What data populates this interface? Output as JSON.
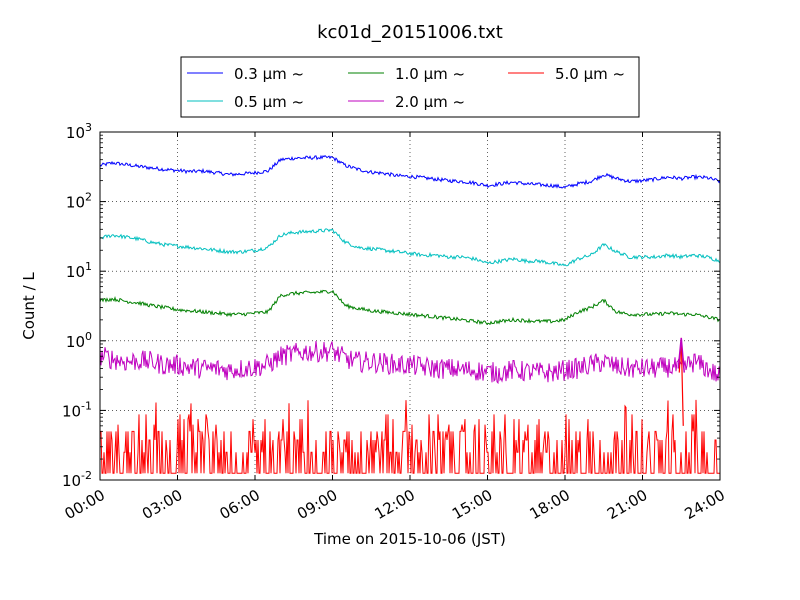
{
  "chart_data": {
    "type": "line",
    "title": "kc01d_20151006.txt",
    "xlabel": "Time on 2015-10-06 (JST)",
    "ylabel": "Count / L",
    "yscale": "log",
    "xlim": [
      0,
      24
    ],
    "ylim": [
      0.01,
      1000
    ],
    "grid": true,
    "legend_position": "top-center, above plot",
    "x_ticks": [
      "00:00",
      "03:00",
      "06:00",
      "09:00",
      "12:00",
      "15:00",
      "18:00",
      "21:00",
      "24:00"
    ],
    "y_ticks": [
      {
        "base": "10",
        "exp": "-2",
        "value": 0.01
      },
      {
        "base": "10",
        "exp": "-1",
        "value": 0.1
      },
      {
        "base": "10",
        "exp": "0",
        "value": 1
      },
      {
        "base": "10",
        "exp": "1",
        "value": 10
      },
      {
        "base": "10",
        "exp": "2",
        "value": 100
      },
      {
        "base": "10",
        "exp": "3",
        "value": 1000
      }
    ],
    "x_hours": [
      0,
      0.5,
      1,
      1.5,
      2,
      2.5,
      3,
      3.5,
      4,
      4.5,
      5,
      5.5,
      6,
      6.5,
      7,
      7.5,
      8,
      8.5,
      9,
      9.5,
      10,
      10.5,
      11,
      11.5,
      12,
      12.5,
      13,
      13.5,
      14,
      14.5,
      15,
      15.5,
      16,
      16.5,
      17,
      17.5,
      18,
      18.5,
      19,
      19.5,
      20,
      20.5,
      21,
      21.5,
      22,
      22.5,
      23,
      23.5,
      24
    ],
    "series": [
      {
        "name": "0.3 μm ~",
        "color": "#0000ff",
        "values": [
          330,
          360,
          340,
          320,
          305,
          290,
          280,
          270,
          275,
          260,
          245,
          250,
          260,
          275,
          400,
          420,
          425,
          430,
          430,
          330,
          290,
          265,
          255,
          235,
          230,
          220,
          210,
          200,
          195,
          185,
          170,
          180,
          190,
          180,
          175,
          170,
          160,
          180,
          195,
          245,
          215,
          195,
          200,
          210,
          225,
          215,
          225,
          220,
          195
        ]
      },
      {
        "name": "0.5 μm ~",
        "color": "#00bfbf",
        "values": [
          30,
          33,
          31,
          29,
          26,
          24,
          23,
          22,
          21,
          20,
          19,
          19,
          20,
          22,
          33,
          36,
          37,
          38,
          39,
          26,
          22,
          21,
          20,
          19,
          18,
          17,
          17,
          16,
          16,
          15,
          13,
          14,
          15,
          14,
          14,
          13,
          12,
          15,
          17,
          24,
          19,
          16,
          16,
          16,
          17,
          16,
          17,
          16,
          14
        ]
      },
      {
        "name": "1.0 μm ~",
        "color": "#008000",
        "values": [
          3.8,
          4.0,
          3.7,
          3.5,
          3.2,
          3.0,
          2.8,
          2.7,
          2.6,
          2.5,
          2.4,
          2.4,
          2.5,
          2.6,
          4.5,
          4.8,
          4.9,
          5.0,
          5.2,
          3.2,
          2.9,
          2.7,
          2.6,
          2.5,
          2.4,
          2.3,
          2.2,
          2.1,
          2.0,
          1.9,
          1.8,
          1.9,
          2.0,
          1.95,
          1.9,
          1.9,
          2.0,
          2.6,
          3.0,
          3.8,
          2.6,
          2.4,
          2.4,
          2.4,
          2.5,
          2.4,
          2.4,
          2.2,
          2.0
        ]
      },
      {
        "name": "2.0 μm ~",
        "color": "#bf00bf",
        "values": [
          0.6,
          0.55,
          0.5,
          0.52,
          0.5,
          0.45,
          0.45,
          0.42,
          0.4,
          0.4,
          0.38,
          0.4,
          0.42,
          0.45,
          0.6,
          0.65,
          0.7,
          0.7,
          0.72,
          0.55,
          0.5,
          0.5,
          0.48,
          0.45,
          0.45,
          0.42,
          0.4,
          0.4,
          0.38,
          0.38,
          0.35,
          0.35,
          0.38,
          0.36,
          0.35,
          0.35,
          0.38,
          0.4,
          0.45,
          0.5,
          0.42,
          0.4,
          0.4,
          0.4,
          0.42,
          0.4,
          0.5,
          0.4,
          0.3
        ]
      },
      {
        "name": "5.0 μm ~",
        "color": "#ff0000",
        "values": [
          0.02,
          0.03,
          0.025,
          0.03,
          0.02,
          0.025,
          0.03,
          0.02,
          0.025,
          0.02,
          0.03,
          0.025,
          0.02,
          0.03,
          0.04,
          0.03,
          0.035,
          0.03,
          0.04,
          0.03,
          0.03,
          0.035,
          0.03,
          0.03,
          0.025,
          0.03,
          0.025,
          0.03,
          0.02,
          0.025,
          0.02,
          0.025,
          0.03,
          0.025,
          0.02,
          0.03,
          0.025,
          0.03,
          0.025,
          0.04,
          0.03,
          0.025,
          0.03,
          0.025,
          0.03,
          0.03,
          0.025,
          0.02,
          0.02
        ]
      }
    ],
    "annotations": [
      {
        "series": "2.0 μm ~",
        "x": 22.5,
        "y": 1.1
      }
    ]
  }
}
